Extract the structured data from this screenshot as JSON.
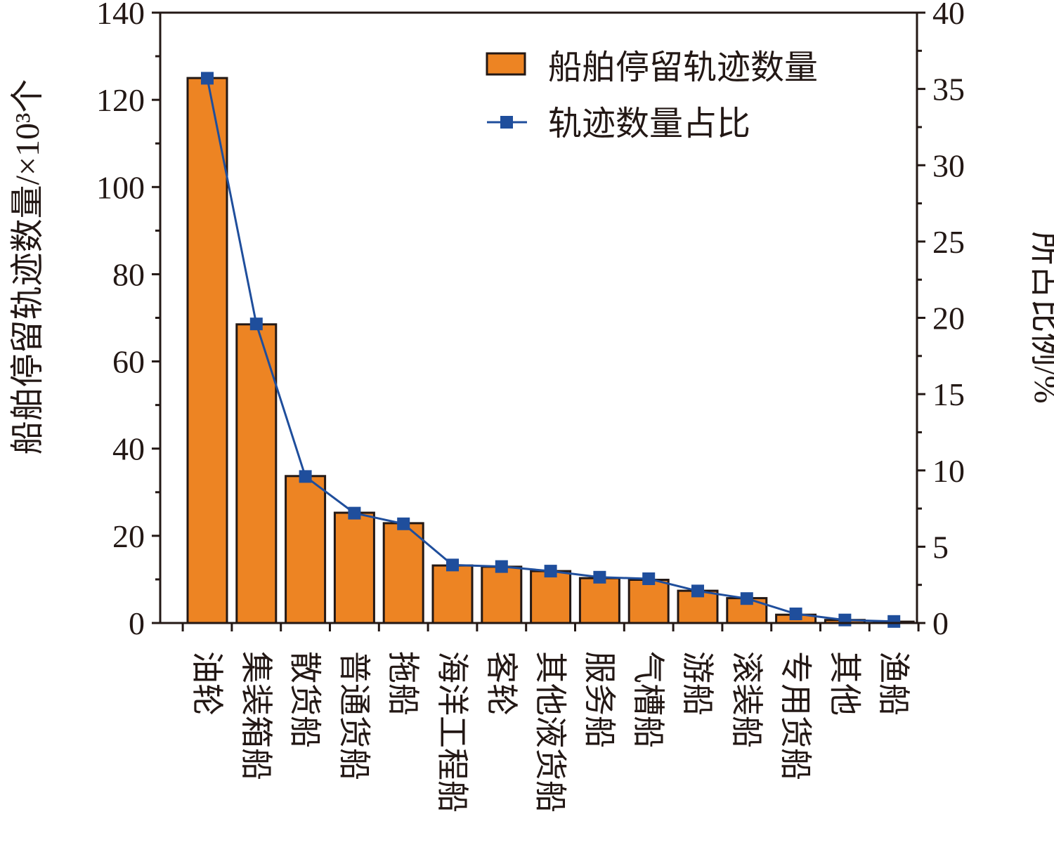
{
  "chart_data": {
    "type": "bar",
    "categories": [
      "油轮",
      "集装箱船",
      "散货船",
      "普通货船",
      "拖船",
      "海洋工程船",
      "客轮",
      "其他液货船",
      "服务船",
      "气槽船",
      "游船",
      "滚装船",
      "专用货船",
      "其他",
      "渔船"
    ],
    "series": [
      {
        "name": "船舶停留轨迹数量",
        "type": "bar",
        "axis": "left",
        "values": [
          125,
          68.5,
          33.7,
          25.3,
          22.9,
          13.2,
          12.9,
          11.9,
          10.3,
          9.9,
          7.4,
          5.7,
          1.9,
          0.7,
          0.3
        ],
        "color": "#ed8423"
      },
      {
        "name": "轨迹数量占比",
        "type": "line",
        "axis": "right",
        "values": [
          35.7,
          19.6,
          9.6,
          7.2,
          6.5,
          3.8,
          3.7,
          3.4,
          3.0,
          2.9,
          2.1,
          1.6,
          0.6,
          0.2,
          0.1
        ],
        "color": "#1f4e9c"
      }
    ],
    "ylabel": "船舶停留轨迹数量/×10³个",
    "y2label": "所占比例/%",
    "ylim": [
      0,
      140
    ],
    "y2lim": [
      0,
      40
    ],
    "yticks": [
      "0",
      "20",
      "40",
      "60",
      "80",
      "100",
      "120",
      "140"
    ],
    "y2ticks": [
      "0",
      "5",
      "10",
      "15",
      "20",
      "25",
      "30",
      "35",
      "40"
    ],
    "legend_position": "top-right",
    "grid": false
  }
}
